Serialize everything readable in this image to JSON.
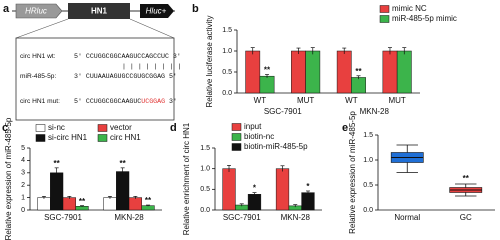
{
  "diagram": {
    "label": "a",
    "elements": [
      "HRluc",
      "HN1",
      "Hluc+"
    ],
    "rows": [
      {
        "name": "circ HN1  wt:",
        "seq": "5' CCUGGCGGCAAGUCCAGCCUC 3'"
      },
      {
        "name": "miR-485-5p:",
        "seq": "3' CUUAAUAGUGCCGUGCGGAG 5'"
      },
      {
        "name": "circ HN1 mut:",
        "seq": "5' CCUGGCGGCAAGUC",
        "seq_mutated": "UCGGAG",
        "seq_end": " 3'"
      }
    ]
  },
  "chart_data": [
    {
      "type": "bar",
      "label": "b",
      "ylabel": "Relative luciferase activity",
      "categories": [
        "WT",
        "MUT",
        "WT",
        "MUT"
      ],
      "groups": [
        "SGC-7901",
        "MKN-28"
      ],
      "ylim": [
        0,
        1.5
      ],
      "yticks": [
        {
          "value": 0,
          "label": "0.0"
        },
        {
          "value": 0.5,
          "label": "0.5"
        },
        {
          "value": 1,
          "label": "1.0"
        },
        {
          "value": 1.5,
          "label": "1.5"
        }
      ],
      "series": [
        {
          "name": "mimic NC",
          "color": "#e8403f",
          "values": [
            1.0,
            1.0,
            1.0,
            1.0
          ],
          "errors": [
            0.08,
            0.07,
            0.07,
            0.08
          ],
          "significance": [
            null,
            null,
            null,
            null
          ]
        },
        {
          "name": "miR-485-5p mimic",
          "color": "#3cb44b",
          "values": [
            0.4,
            1.0,
            0.37,
            1.0
          ],
          "errors": [
            0.04,
            0.08,
            0.04,
            0.08
          ],
          "significance": [
            "**",
            null,
            "**",
            null
          ]
        }
      ]
    },
    {
      "type": "bar",
      "label": "c",
      "ylabel": "Relative expression of miR-485-5p",
      "categories": [
        "SGC-7901",
        "MKN-28"
      ],
      "ylim": [
        0,
        5
      ],
      "yticks": [
        0,
        1,
        2,
        3,
        4,
        5
      ],
      "series": [
        {
          "name": "si-nc",
          "color": "#ffffff",
          "values": [
            1.0,
            1.0
          ],
          "errors": [
            0.1,
            0.1
          ],
          "significance": [
            null,
            null
          ]
        },
        {
          "name": "si-circ HN1",
          "color": "#111111",
          "values": [
            3.0,
            3.1
          ],
          "errors": [
            0.4,
            0.3
          ],
          "significance": [
            "**",
            "**"
          ]
        },
        {
          "name": "vector",
          "color": "#e8403f",
          "values": [
            1.0,
            1.0
          ],
          "errors": [
            0.1,
            0.1
          ],
          "significance": [
            null,
            null
          ]
        },
        {
          "name": "circ HN1",
          "color": "#3cb44b",
          "values": [
            0.3,
            0.35
          ],
          "errors": [
            0.05,
            0.05
          ],
          "significance": [
            "**",
            "**"
          ]
        }
      ]
    },
    {
      "type": "bar",
      "label": "d",
      "ylabel": "Relative enrichment of circ HN1",
      "categories": [
        "SGC-7901",
        "MKN-28"
      ],
      "ylim": [
        0,
        1.5
      ],
      "yticks": [
        {
          "value": 0,
          "label": "0.0"
        },
        {
          "value": 0.5,
          "label": "0.5"
        },
        {
          "value": 1,
          "label": "1.0"
        },
        {
          "value": 1.5,
          "label": "1.5"
        }
      ],
      "series": [
        {
          "name": "input",
          "color": "#e8403f",
          "values": [
            1.0,
            1.0
          ],
          "errors": [
            0.08,
            0.07
          ],
          "significance": [
            null,
            null
          ]
        },
        {
          "name": "biotin-nc",
          "color": "#3cb44b",
          "values": [
            0.12,
            0.1
          ],
          "errors": [
            0.03,
            0.03
          ],
          "significance": [
            null,
            null
          ]
        },
        {
          "name": "biotin-miR-485-5p",
          "color": "#111111",
          "values": [
            0.38,
            0.42
          ],
          "errors": [
            0.04,
            0.04
          ],
          "significance": [
            "*",
            "*"
          ]
        }
      ]
    },
    {
      "type": "box",
      "label": "e",
      "ylabel": "Relative expression of miR-485-5p",
      "categories": [
        "Normal",
        "GC"
      ],
      "ylim": [
        0,
        1.5
      ],
      "yticks": [
        {
          "value": 0,
          "label": "0.0"
        },
        {
          "value": 0.5,
          "label": "0.5"
        },
        {
          "value": 1,
          "label": "1.0"
        },
        {
          "value": 1.5,
          "label": "1.5"
        }
      ],
      "colors": [
        "#1f6fd6",
        "#e8403f"
      ],
      "boxes": [
        {
          "min": 0.75,
          "q1": 0.95,
          "median": 1.05,
          "q3": 1.15,
          "max": 1.3
        },
        {
          "min": 0.28,
          "q1": 0.35,
          "median": 0.4,
          "q3": 0.45,
          "max": 0.52
        }
      ],
      "significance": [
        null,
        "**"
      ]
    }
  ]
}
